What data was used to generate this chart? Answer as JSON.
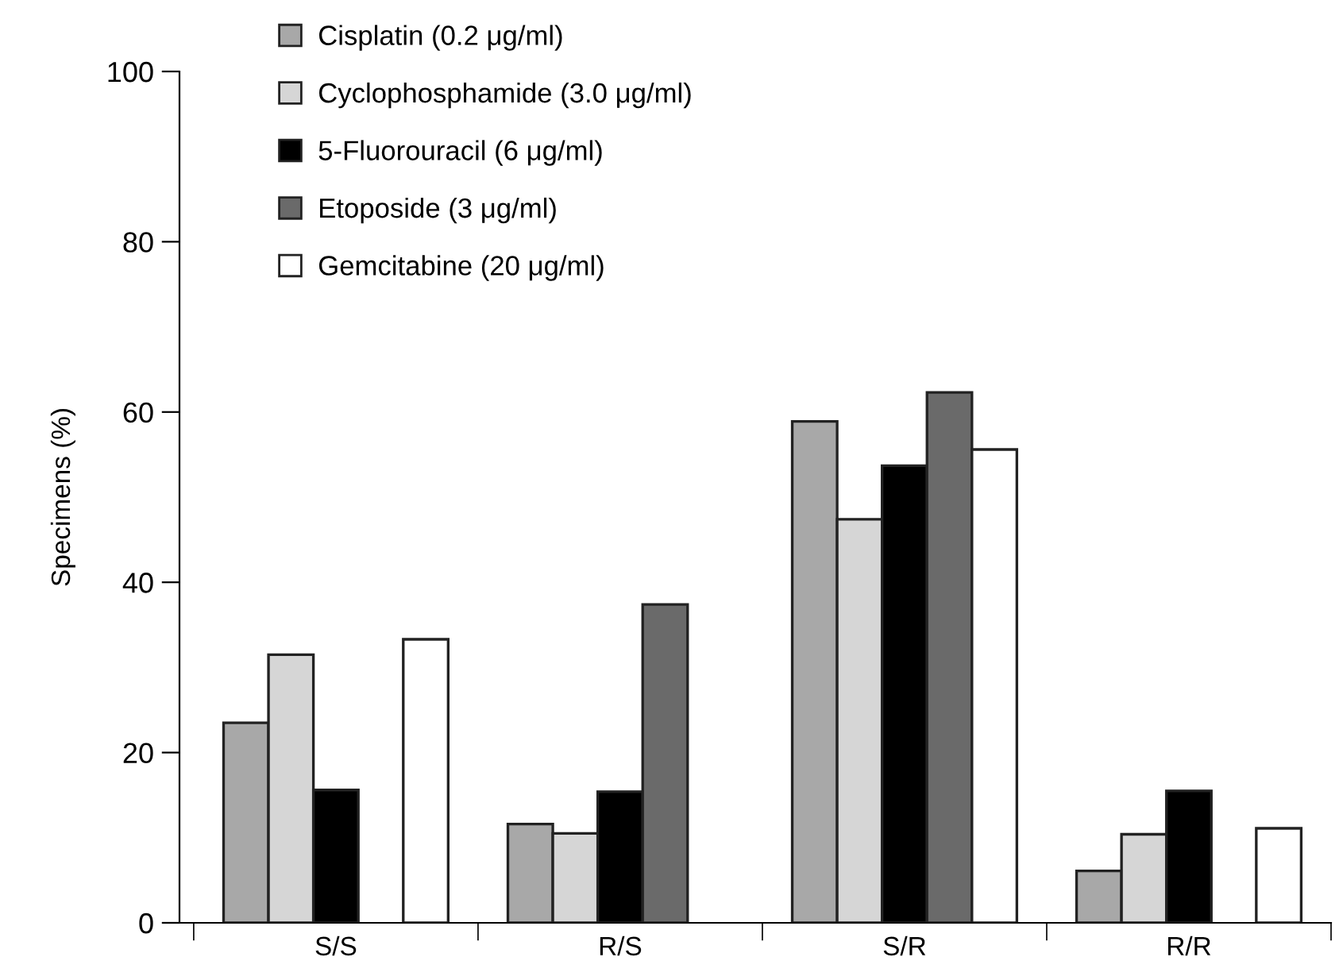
{
  "chart_data": {
    "type": "bar",
    "ylabel": "Specimens (%)",
    "categories": [
      "S/S",
      "R/S",
      "S/R",
      "R/R"
    ],
    "series": [
      {
        "name": "Cisplatin (0.2 μg/ml)",
        "color": "#a8a8a8",
        "values": [
          23.5,
          11.6,
          58.9,
          6.1
        ]
      },
      {
        "name": "Cyclophosphamide (3.0 μg/ml)",
        "color": "#d6d6d6",
        "values": [
          31.5,
          10.5,
          47.4,
          10.4
        ]
      },
      {
        "name": "5-Fluorouracil (6 μg/ml)",
        "color": "#000000",
        "values": [
          15.6,
          15.4,
          53.7,
          15.5
        ]
      },
      {
        "name": "Etoposide (3 μg/ml)",
        "color": "#6a6a6a",
        "values": [
          null,
          37.4,
          62.3,
          null
        ]
      },
      {
        "name": "Gemcitabine (20 μg/ml)",
        "color": "#ffffff",
        "values": [
          33.3,
          null,
          55.6,
          11.1
        ]
      }
    ],
    "ylim": [
      0,
      100
    ],
    "yticks": [
      0,
      20,
      40,
      60,
      80,
      100
    ],
    "legend": "top left",
    "grid": false
  }
}
